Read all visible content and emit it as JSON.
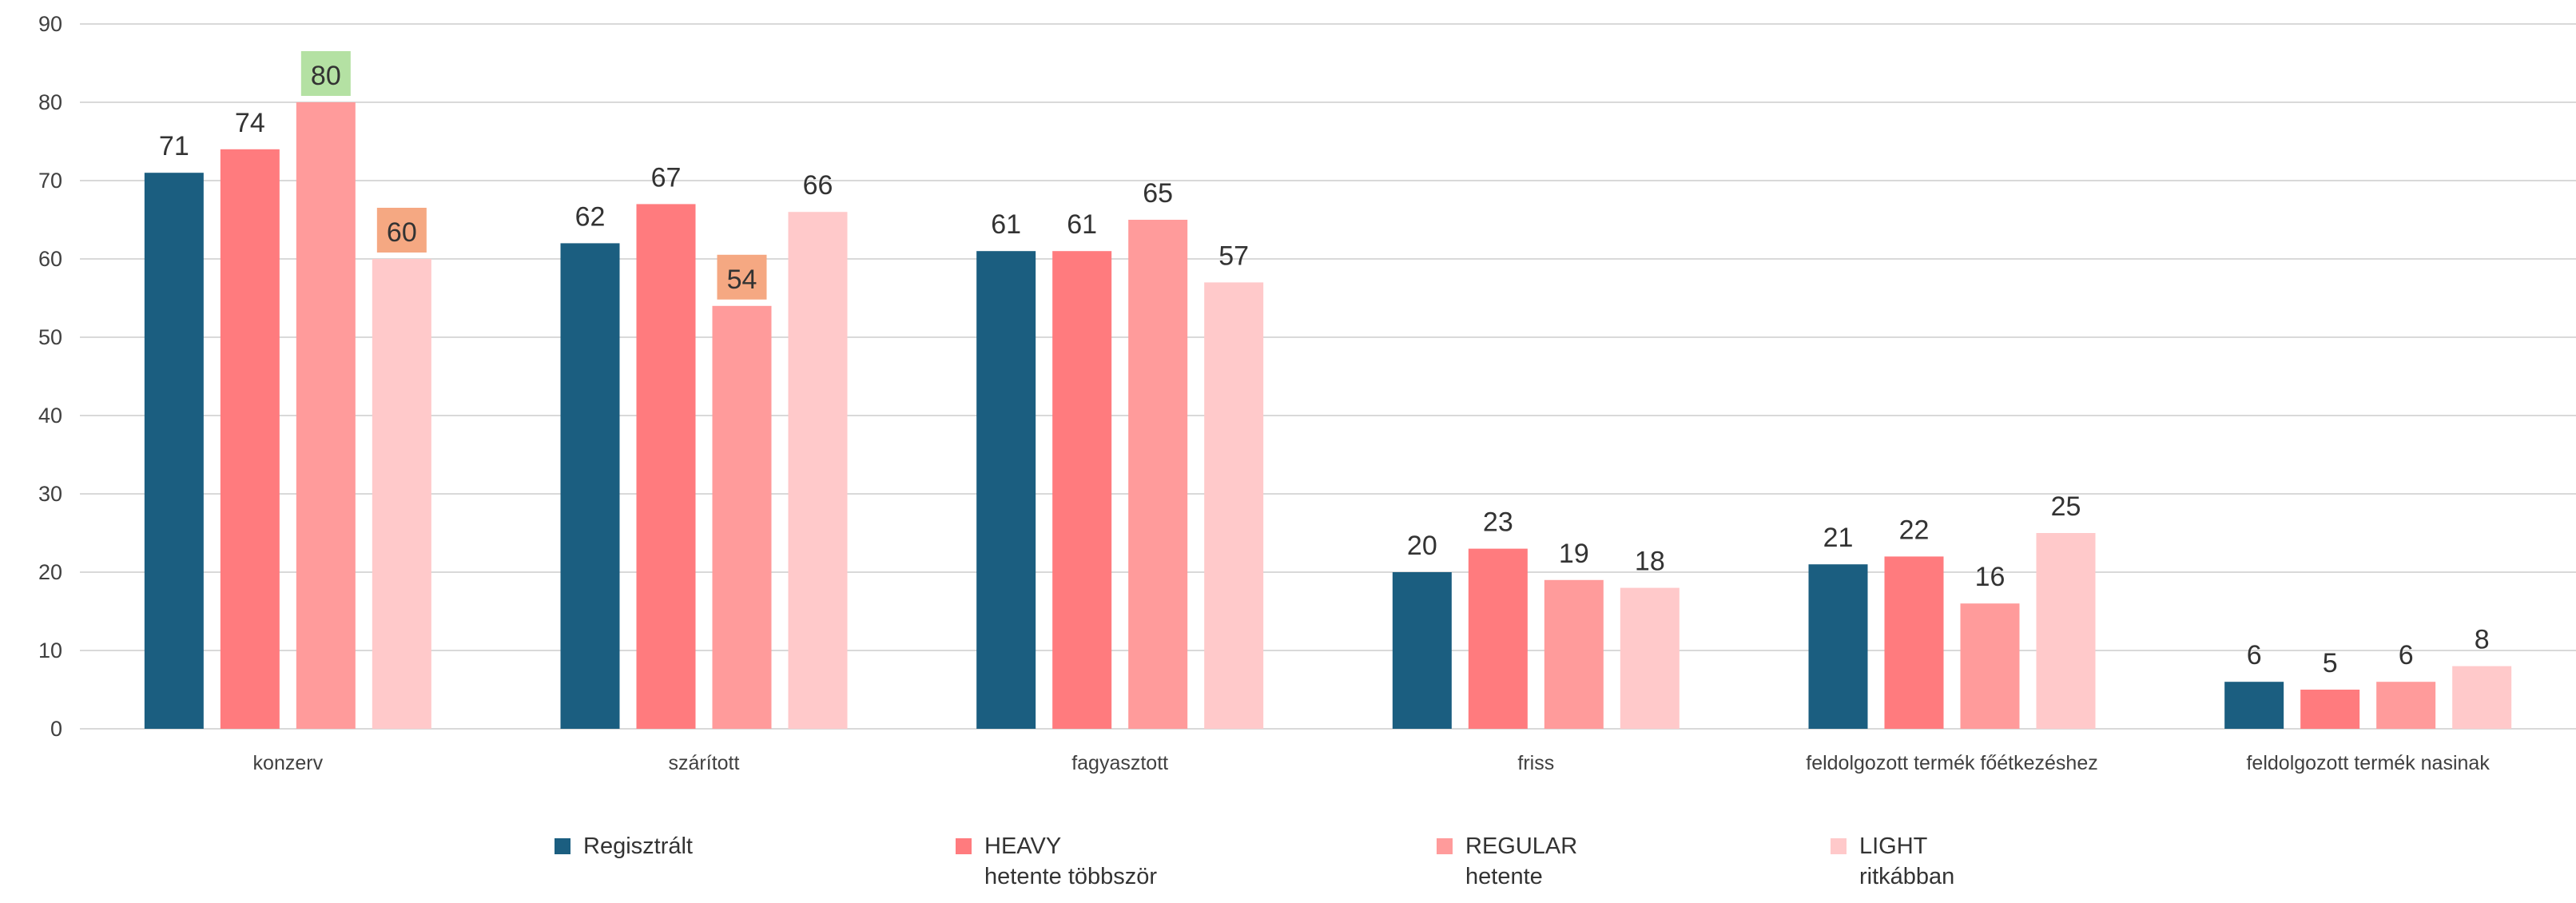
{
  "chart_data": {
    "type": "bar",
    "title": "",
    "xlabel": "",
    "ylabel": "",
    "ylim": [
      0,
      90
    ],
    "yticks": [
      0,
      10,
      20,
      30,
      40,
      50,
      60,
      70,
      80,
      90
    ],
    "grid": true,
    "legend_position": "bottom",
    "categories": [
      "konzerv",
      "szárított",
      "fagyasztott",
      "friss",
      "feldolgozott termék főétkezéshez",
      "feldolgozott termék nasinak"
    ],
    "series": [
      {
        "name": "Regisztrált",
        "color": "#1b5e80",
        "values": [
          71,
          62,
          61,
          20,
          21,
          6
        ]
      },
      {
        "name": "HEAVY",
        "subtitle": "hetente többször",
        "color": "#ff7b7e",
        "values": [
          74,
          67,
          61,
          23,
          22,
          5
        ]
      },
      {
        "name": "REGULAR",
        "subtitle": "hetente",
        "color": "#ff9b9b",
        "values": [
          80,
          54,
          65,
          19,
          16,
          6
        ]
      },
      {
        "name": "LIGHT",
        "subtitle": "ritkábban",
        "color": "#ffc9ca",
        "values": [
          60,
          66,
          57,
          18,
          25,
          8
        ]
      }
    ],
    "highlights": [
      {
        "series": 2,
        "category": 0,
        "color": "#b4e1a3"
      },
      {
        "series": 3,
        "category": 0,
        "color": "#f5a882"
      },
      {
        "series": 2,
        "category": 1,
        "color": "#f5a882"
      }
    ]
  }
}
